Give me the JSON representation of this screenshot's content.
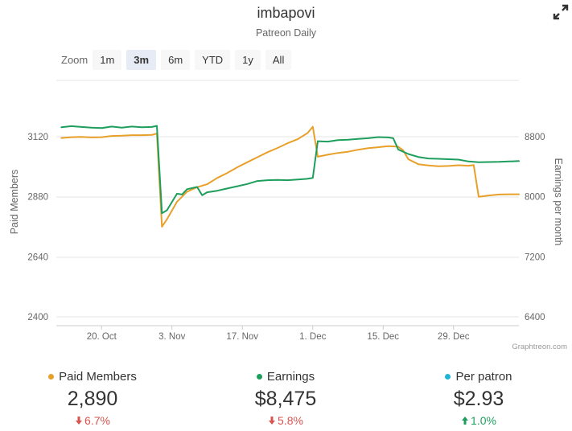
{
  "header": {
    "title": "imbapovi",
    "subtitle": "Patreon Daily"
  },
  "zoom": {
    "label": "Zoom",
    "buttons": [
      "1m",
      "3m",
      "6m",
      "YTD",
      "1y",
      "All"
    ],
    "active": "3m"
  },
  "credit": "Graphtreon.com",
  "colors": {
    "paid_members": "#e8a02a",
    "earnings": "#1e9e5c",
    "per_patron": "#1fb4d8",
    "decrease": "#d9534f",
    "increase": "#1e9e5c"
  },
  "chart_data": {
    "type": "line",
    "title": "imbapovi",
    "subtitle": "Patreon Daily",
    "x_range": [
      "2024-10-11",
      "2025-01-11"
    ],
    "x_ticks": [
      {
        "date": "2024-10-20",
        "label": "20. Oct"
      },
      {
        "date": "2024-11-03",
        "label": "3. Nov"
      },
      {
        "date": "2024-11-17",
        "label": "17. Nov"
      },
      {
        "date": "2024-12-01",
        "label": "1. Dec"
      },
      {
        "date": "2024-12-15",
        "label": "15. Dec"
      },
      {
        "date": "2024-12-29",
        "label": "29. Dec"
      }
    ],
    "y_left": {
      "label": "Paid Members",
      "range": [
        2400,
        3120
      ],
      "ticks": [
        2400,
        2640,
        2880,
        3120
      ]
    },
    "y_right": {
      "label": "Earnings per month",
      "range": [
        6400,
        8800
      ],
      "ticks": [
        6400,
        7200,
        8000,
        8800
      ]
    },
    "grid": true,
    "series": [
      {
        "name": "Paid Members",
        "axis": "left",
        "points": [
          [
            "2024-10-12",
            3115
          ],
          [
            "2024-10-14",
            3118
          ],
          [
            "2024-10-16",
            3119
          ],
          [
            "2024-10-18",
            3117
          ],
          [
            "2024-10-20",
            3118
          ],
          [
            "2024-10-22",
            3123
          ],
          [
            "2024-10-24",
            3124
          ],
          [
            "2024-10-26",
            3126
          ],
          [
            "2024-10-28",
            3126
          ],
          [
            "2024-10-30",
            3127
          ],
          [
            "2024-10-31",
            3133
          ],
          [
            "2024-11-01",
            2760
          ],
          [
            "2024-11-02",
            2790
          ],
          [
            "2024-11-04",
            2860
          ],
          [
            "2024-11-06",
            2900
          ],
          [
            "2024-11-08",
            2918
          ],
          [
            "2024-11-10",
            2930
          ],
          [
            "2024-11-12",
            2955
          ],
          [
            "2024-11-14",
            2975
          ],
          [
            "2024-11-16",
            2998
          ],
          [
            "2024-11-18",
            3018
          ],
          [
            "2024-11-20",
            3038
          ],
          [
            "2024-11-22",
            3058
          ],
          [
            "2024-11-24",
            3075
          ],
          [
            "2024-11-26",
            3094
          ],
          [
            "2024-11-28",
            3110
          ],
          [
            "2024-11-30",
            3135
          ],
          [
            "2024-12-01",
            3160
          ],
          [
            "2024-12-02",
            3040
          ],
          [
            "2024-12-04",
            3048
          ],
          [
            "2024-12-06",
            3055
          ],
          [
            "2024-12-08",
            3060
          ],
          [
            "2024-12-10",
            3068
          ],
          [
            "2024-12-12",
            3074
          ],
          [
            "2024-12-14",
            3078
          ],
          [
            "2024-12-16",
            3082
          ],
          [
            "2024-12-18",
            3080
          ],
          [
            "2024-12-19",
            3065
          ],
          [
            "2024-12-20",
            3030
          ],
          [
            "2024-12-22",
            3010
          ],
          [
            "2024-12-24",
            3005
          ],
          [
            "2024-12-26",
            3002
          ],
          [
            "2024-12-28",
            3003
          ],
          [
            "2024-12-30",
            3006
          ],
          [
            "2025-01-01",
            3004
          ],
          [
            "2025-01-02",
            3007
          ],
          [
            "2025-01-03",
            2880
          ],
          [
            "2025-01-05",
            2885
          ],
          [
            "2025-01-07",
            2889
          ],
          [
            "2025-01-09",
            2890
          ],
          [
            "2025-01-11",
            2890
          ]
        ]
      },
      {
        "name": "Earnings",
        "axis": "right",
        "points": [
          [
            "2024-10-12",
            8925
          ],
          [
            "2024-10-14",
            8940
          ],
          [
            "2024-10-16",
            8930
          ],
          [
            "2024-10-18",
            8920
          ],
          [
            "2024-10-20",
            8915
          ],
          [
            "2024-10-22",
            8935
          ],
          [
            "2024-10-24",
            8920
          ],
          [
            "2024-10-26",
            8935
          ],
          [
            "2024-10-28",
            8925
          ],
          [
            "2024-10-30",
            8930
          ],
          [
            "2024-10-31",
            8945
          ],
          [
            "2024-11-01",
            7780
          ],
          [
            "2024-11-02",
            7820
          ],
          [
            "2024-11-04",
            8040
          ],
          [
            "2024-11-05",
            8030
          ],
          [
            "2024-11-06",
            8100
          ],
          [
            "2024-11-08",
            8130
          ],
          [
            "2024-11-09",
            8020
          ],
          [
            "2024-11-10",
            8060
          ],
          [
            "2024-11-12",
            8080
          ],
          [
            "2024-11-14",
            8110
          ],
          [
            "2024-11-16",
            8140
          ],
          [
            "2024-11-18",
            8170
          ],
          [
            "2024-11-20",
            8210
          ],
          [
            "2024-11-22",
            8220
          ],
          [
            "2024-11-24",
            8225
          ],
          [
            "2024-11-26",
            8220
          ],
          [
            "2024-11-28",
            8230
          ],
          [
            "2024-11-30",
            8240
          ],
          [
            "2024-12-01",
            8250
          ],
          [
            "2024-12-02",
            8740
          ],
          [
            "2024-12-04",
            8735
          ],
          [
            "2024-12-06",
            8755
          ],
          [
            "2024-12-08",
            8760
          ],
          [
            "2024-12-10",
            8770
          ],
          [
            "2024-12-12",
            8780
          ],
          [
            "2024-12-14",
            8795
          ],
          [
            "2024-12-16",
            8790
          ],
          [
            "2024-12-17",
            8780
          ],
          [
            "2024-12-18",
            8630
          ],
          [
            "2024-12-20",
            8570
          ],
          [
            "2024-12-22",
            8530
          ],
          [
            "2024-12-24",
            8510
          ],
          [
            "2024-12-26",
            8505
          ],
          [
            "2024-12-28",
            8500
          ],
          [
            "2024-12-30",
            8495
          ],
          [
            "2025-01-01",
            8470
          ],
          [
            "2025-01-03",
            8460
          ],
          [
            "2025-01-05",
            8462
          ],
          [
            "2025-01-07",
            8465
          ],
          [
            "2025-01-09",
            8470
          ],
          [
            "2025-01-11",
            8475
          ]
        ]
      }
    ]
  },
  "stats": [
    {
      "label": "Paid Members",
      "value": "2,890",
      "change": "6.7%",
      "direction": "down",
      "color": "#e8a02a"
    },
    {
      "label": "Earnings",
      "value": "$8,475",
      "change": "5.8%",
      "direction": "down",
      "color": "#1e9e5c"
    },
    {
      "label": "Per patron",
      "value": "$2.93",
      "change": "1.0%",
      "direction": "up",
      "color": "#1fb4d8"
    }
  ]
}
